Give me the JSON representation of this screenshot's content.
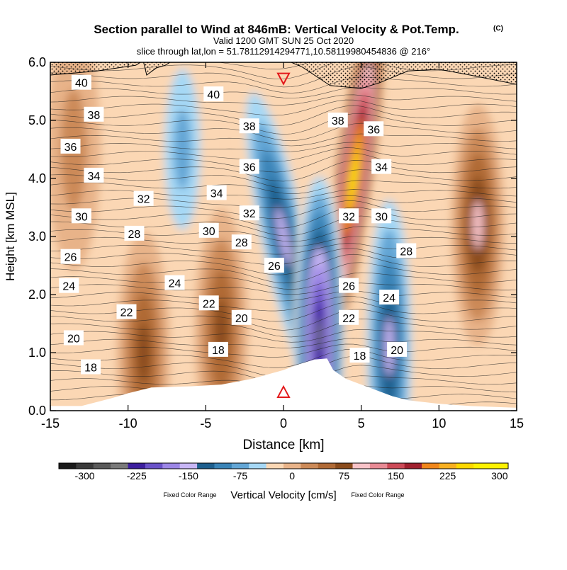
{
  "title": {
    "main": "Section parallel to Wind at 846mB: Vertical Velocity & Pot.Temp.",
    "copyright": "(C)",
    "line2": "Valid 1200 GMT SUN 25 Oct 2020",
    "line3": "slice through lat,lon = 51.78112914294771,10.58119980454836 @ 216°"
  },
  "chart_data": {
    "type": "heatmap",
    "xlabel": "Distance [km]",
    "ylabel": "Height [km MSL]",
    "xlim": [
      -15,
      15
    ],
    "ylim": [
      0,
      6
    ],
    "xticks": [
      -15,
      -10,
      -5,
      0,
      5,
      10,
      15
    ],
    "xtick_labels": [
      "-15",
      "-10",
      "-5",
      "0",
      "5",
      "10",
      "15"
    ],
    "yticks": [
      0,
      1,
      2,
      3,
      4,
      5,
      6
    ],
    "ytick_labels": [
      "0.0",
      "1.0",
      "2.0",
      "3.0",
      "4.0",
      "5.0",
      "6.0"
    ],
    "colorbar": {
      "label": "Vertical Velocity [cm/s]",
      "left_note": "Fixed Color Range",
      "right_note": "Fixed Color Range",
      "levels": [
        -325,
        -300,
        -275,
        -250,
        -225,
        -200,
        -175,
        -150,
        -125,
        -100,
        -75,
        -50,
        -25,
        0,
        25,
        50,
        75,
        100,
        125,
        150,
        175,
        200,
        225,
        250,
        275,
        300,
        325
      ],
      "tick_labels": [
        "-300",
        "-225",
        "-150",
        "-75",
        "0",
        "75",
        "150",
        "225",
        "300"
      ],
      "tick_values": [
        -300,
        -225,
        -150,
        -75,
        0,
        75,
        150,
        225,
        300
      ],
      "colors": [
        "#1a1a1a",
        "#3a3a3a",
        "#5a5a5a",
        "#7a7a7a",
        "#3d1f9e",
        "#6a52c8",
        "#9c86e6",
        "#c8b6f5",
        "#1e5f8e",
        "#3a84b7",
        "#63a6d5",
        "#a6d8f5",
        "#fbd7b4",
        "#e8b389",
        "#cc8a58",
        "#b06a36",
        "#8a4b1c",
        "#f8c3c8",
        "#e88a94",
        "#cc4a57",
        "#a0202e",
        "#f0861a",
        "#f8b020",
        "#ffd800",
        "#fff200",
        "#fff200"
      ]
    },
    "theta_contours": [
      {
        "label": "40",
        "x": -13,
        "y": 5.65
      },
      {
        "label": "40",
        "x": -4.5,
        "y": 5.45
      },
      {
        "label": "38",
        "x": -12.2,
        "y": 5.1
      },
      {
        "label": "38",
        "x": -2.2,
        "y": 4.9
      },
      {
        "label": "38",
        "x": 3.5,
        "y": 5.0
      },
      {
        "label": "36",
        "x": -13.7,
        "y": 4.55
      },
      {
        "label": "36",
        "x": -2.2,
        "y": 4.2
      },
      {
        "label": "36",
        "x": 5.8,
        "y": 4.85
      },
      {
        "label": "34",
        "x": -12.2,
        "y": 4.05
      },
      {
        "label": "34",
        "x": -4.3,
        "y": 3.75
      },
      {
        "label": "34",
        "x": 6.3,
        "y": 4.2
      },
      {
        "label": "32",
        "x": -9.0,
        "y": 3.65
      },
      {
        "label": "32",
        "x": -2.2,
        "y": 3.4
      },
      {
        "label": "32",
        "x": 4.2,
        "y": 3.35
      },
      {
        "label": "30",
        "x": -13.0,
        "y": 3.35
      },
      {
        "label": "30",
        "x": -4.8,
        "y": 3.1
      },
      {
        "label": "30",
        "x": 6.3,
        "y": 3.35
      },
      {
        "label": "28",
        "x": -9.6,
        "y": 3.05
      },
      {
        "label": "28",
        "x": -2.7,
        "y": 2.9
      },
      {
        "label": "28",
        "x": 7.9,
        "y": 2.75
      },
      {
        "label": "26",
        "x": -13.7,
        "y": 2.65
      },
      {
        "label": "26",
        "x": -0.6,
        "y": 2.5
      },
      {
        "label": "26",
        "x": 4.2,
        "y": 2.15
      },
      {
        "label": "24",
        "x": -13.8,
        "y": 2.15
      },
      {
        "label": "24",
        "x": -7.0,
        "y": 2.2
      },
      {
        "label": "24",
        "x": 6.8,
        "y": 1.95
      },
      {
        "label": "22",
        "x": -10.1,
        "y": 1.7
      },
      {
        "label": "22",
        "x": -4.8,
        "y": 1.85
      },
      {
        "label": "22",
        "x": 4.2,
        "y": 1.6
      },
      {
        "label": "20",
        "x": -13.5,
        "y": 1.25
      },
      {
        "label": "20",
        "x": -2.7,
        "y": 1.6
      },
      {
        "label": "20",
        "x": 7.3,
        "y": 1.05
      },
      {
        "label": "18",
        "x": -12.4,
        "y": 0.75
      },
      {
        "label": "18",
        "x": -4.2,
        "y": 1.05
      },
      {
        "label": "18",
        "x": 4.9,
        "y": 0.95
      }
    ],
    "markers": [
      {
        "type": "triangle-down",
        "x": 0,
        "y": 5.7,
        "color": "#e31a1c"
      },
      {
        "type": "triangle-up",
        "x": 0,
        "y": 0.33,
        "color": "#e31a1c"
      }
    ],
    "features": [
      {
        "sign": "positive",
        "center_x": 4.5,
        "center_y": 4.0,
        "peak": 300
      },
      {
        "sign": "positive",
        "center_x": 12.5,
        "center_y": 3.2,
        "peak": 125
      },
      {
        "sign": "positive",
        "center_x": -9.0,
        "center_y": 1.0,
        "peak": 100
      },
      {
        "sign": "positive",
        "center_x": -4.0,
        "center_y": 1.4,
        "peak": 100
      },
      {
        "sign": "positive",
        "center_x": -13.5,
        "center_y": 4.5,
        "peak": 50
      },
      {
        "sign": "negative",
        "center_x": 0.0,
        "center_y": 3.0,
        "peak": -150
      },
      {
        "sign": "negative",
        "center_x": 2.3,
        "center_y": 1.3,
        "peak": -250
      },
      {
        "sign": "negative",
        "center_x": -6.5,
        "center_y": 4.5,
        "peak": -75
      },
      {
        "sign": "negative",
        "center_x": 6.8,
        "center_y": 1.1,
        "peak": -150
      }
    ]
  }
}
